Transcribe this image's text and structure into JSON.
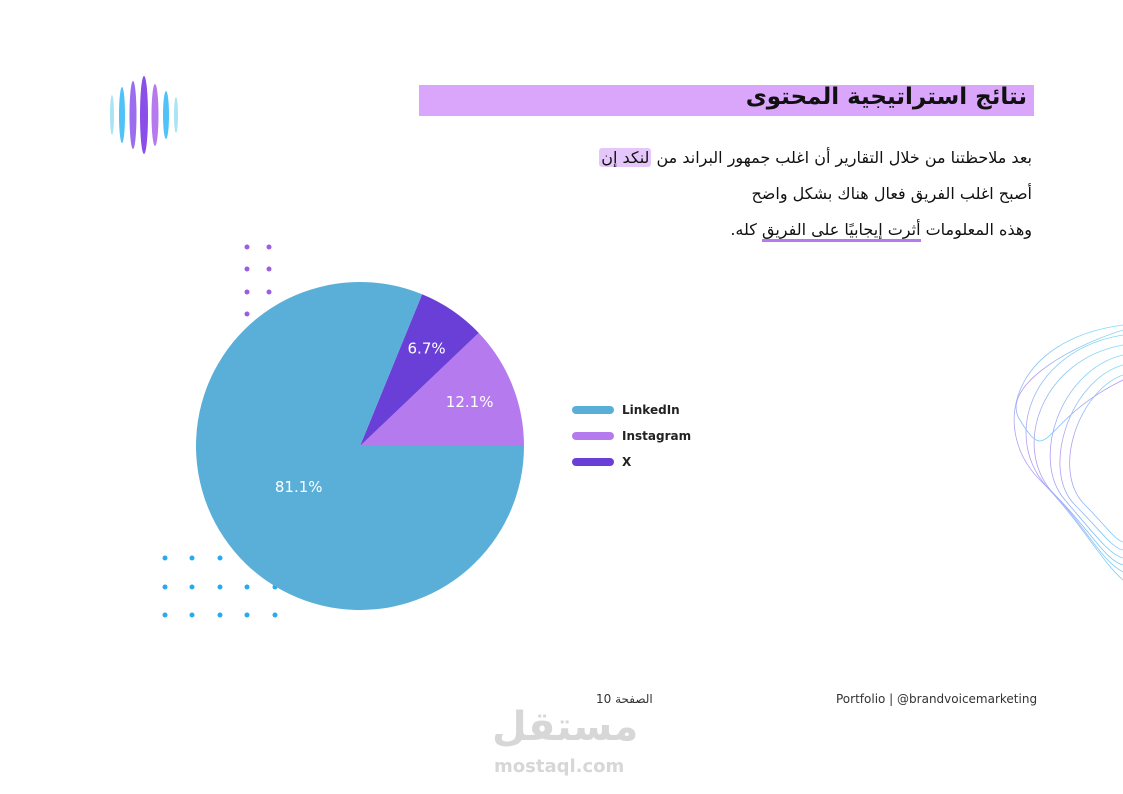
{
  "header": {
    "title": "نتائج استراتيجية المحتوى"
  },
  "paragraph": {
    "line1": [
      "بعد ملاحظتنا من خلال التقارير أن اغلب جمهور البراند من",
      "لنكد إن"
    ],
    "line2": "أصبح اغلب الفريق فعال هناك بشكل واضح",
    "line3": [
      "وهذه المعلومات",
      "أثرت إيجابيًا على الفريق",
      "كله."
    ]
  },
  "chart_data": {
    "type": "pie",
    "categories": [
      "LinkedIn",
      "Instagram",
      "X"
    ],
    "values": [
      81.1,
      12.1,
      6.7
    ],
    "value_labels": [
      "81.1%",
      "12.1%",
      "6.7%"
    ],
    "colors": [
      "#5aafd8",
      "#b57bee",
      "#6a3fd8"
    ],
    "legend": "right"
  },
  "footer": {
    "page": "الصفحة 10",
    "credit": "Portfolio | @brandvoicemarketing",
    "watermark": "مستقل",
    "watermark_url": "mostaql.com"
  }
}
